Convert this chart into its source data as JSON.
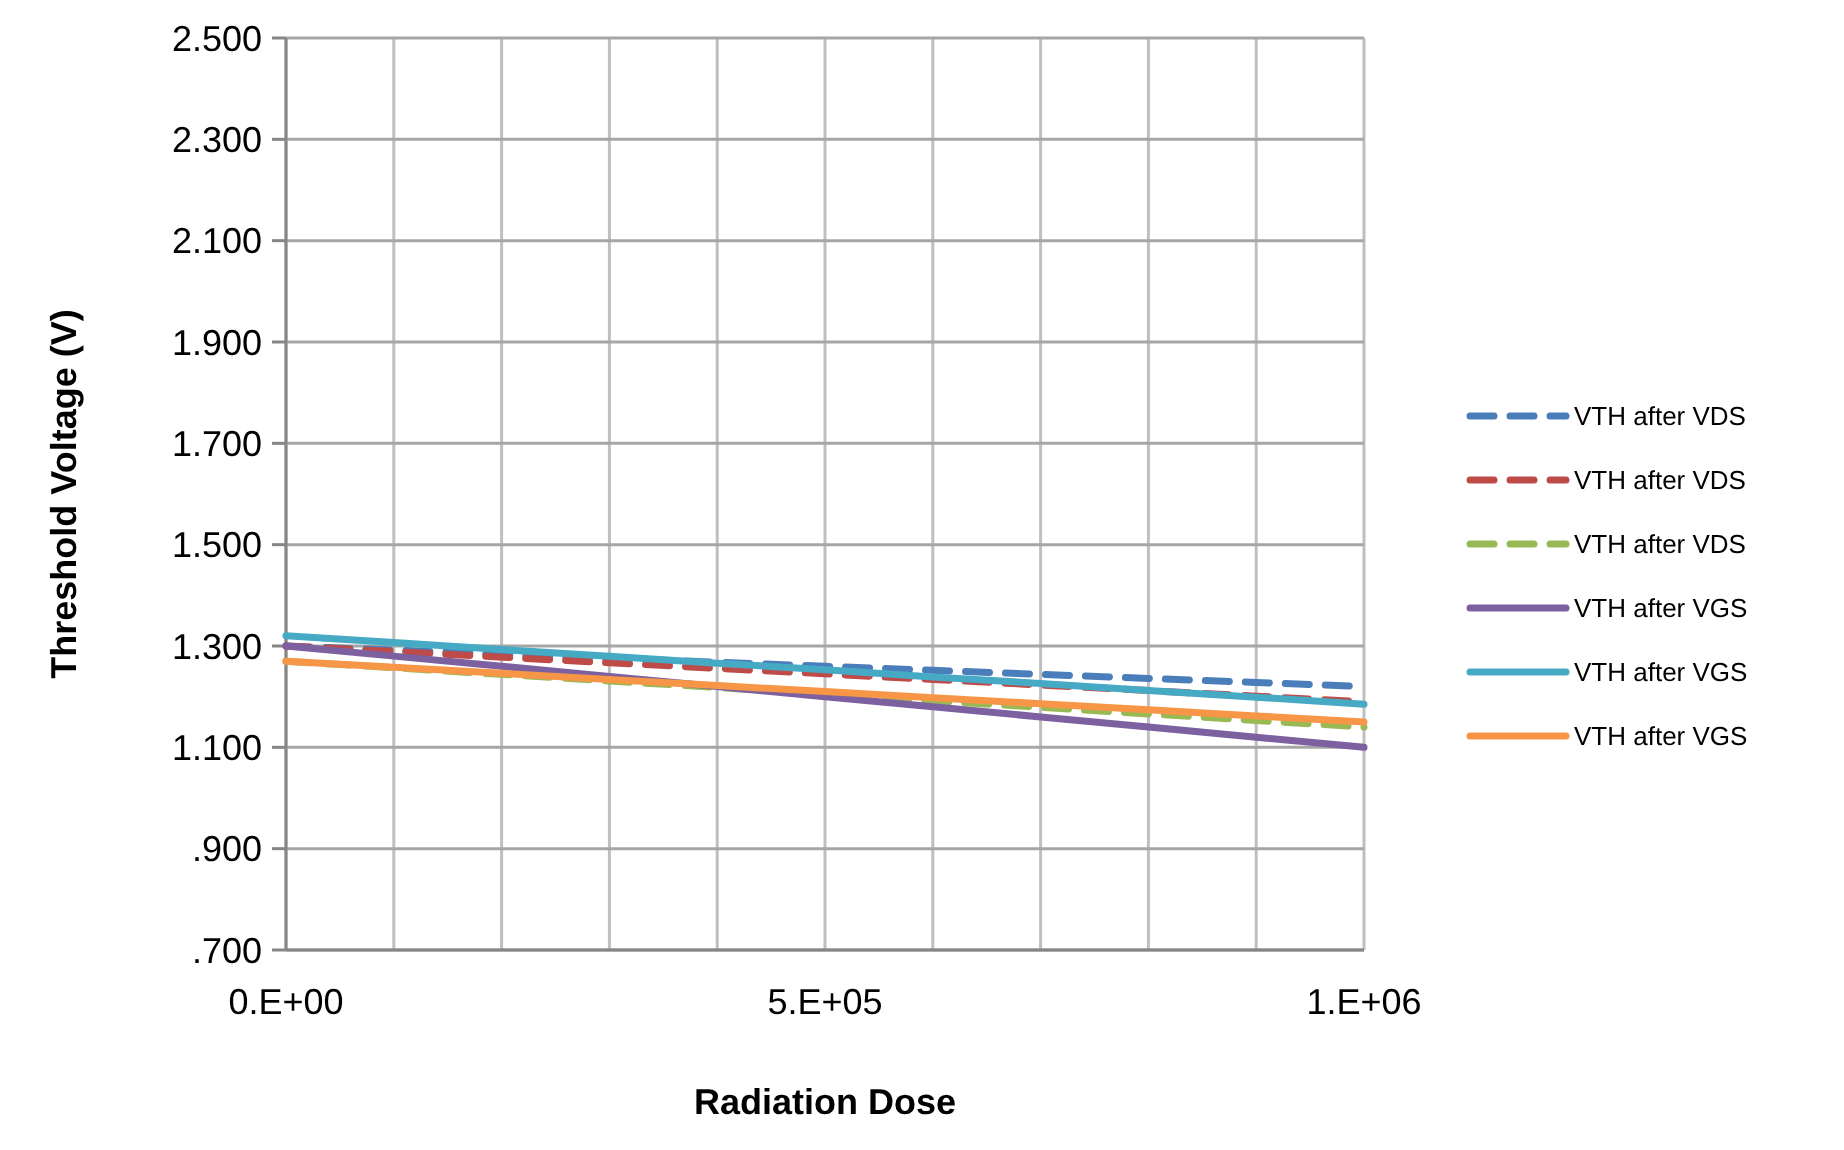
{
  "chart_data": {
    "type": "line",
    "xlabel": "Radiation Dose",
    "ylabel": "Threshold Voltage (V)",
    "categories": [
      "0.E+00",
      null,
      null,
      null,
      null,
      "5.E+05",
      null,
      null,
      null,
      null,
      "1.E+06"
    ],
    "ylim": [
      0.7,
      2.5
    ],
    "yticks": [
      {
        "value": 0.7,
        "label": ".700"
      },
      {
        "value": 0.9,
        "label": ".900"
      },
      {
        "value": 1.1,
        "label": "1.100"
      },
      {
        "value": 1.3,
        "label": "1.300"
      },
      {
        "value": 1.5,
        "label": "1.500"
      },
      {
        "value": 1.7,
        "label": "1.700"
      },
      {
        "value": 1.9,
        "label": "1.900"
      },
      {
        "value": 2.1,
        "label": "2.100"
      },
      {
        "value": 2.3,
        "label": "2.300"
      },
      {
        "value": 2.5,
        "label": "2.500"
      }
    ],
    "grid": true,
    "legend": "right",
    "marker": "none",
    "series": [
      {
        "name": "VTH after VDS",
        "color": "#4a7ebb",
        "line_style": "dashed",
        "values": [
          1.3,
          1.292,
          1.284,
          1.276,
          1.268,
          1.26,
          1.252,
          1.244,
          1.236,
          1.228,
          1.22
        ]
      },
      {
        "name": "VTH after VDS",
        "color": "#be4b48",
        "line_style": "dashed",
        "values": [
          1.3,
          1.289,
          1.278,
          1.267,
          1.256,
          1.245,
          1.234,
          1.223,
          1.212,
          1.201,
          1.19
        ]
      },
      {
        "name": "VTH after VDS",
        "color": "#98b954",
        "line_style": "dashed",
        "values": [
          1.27,
          1.257,
          1.244,
          1.231,
          1.218,
          1.205,
          1.192,
          1.179,
          1.166,
          1.153,
          1.14
        ]
      },
      {
        "name": "VTH after VGS",
        "color": "#7d60a0",
        "line_style": "solid",
        "values": [
          1.3,
          1.28,
          1.26,
          1.24,
          1.22,
          1.2,
          1.18,
          1.16,
          1.14,
          1.12,
          1.1
        ]
      },
      {
        "name": "VTH after VGS",
        "color": "#46aac5",
        "line_style": "solid",
        "values": [
          1.32,
          1.307,
          1.293,
          1.28,
          1.266,
          1.253,
          1.239,
          1.226,
          1.212,
          1.199,
          1.185
        ]
      },
      {
        "name": "VTH after VGS",
        "color": "#f79646",
        "line_style": "solid",
        "values": [
          1.27,
          1.258,
          1.246,
          1.234,
          1.222,
          1.21,
          1.198,
          1.186,
          1.174,
          1.162,
          1.15
        ]
      }
    ]
  }
}
